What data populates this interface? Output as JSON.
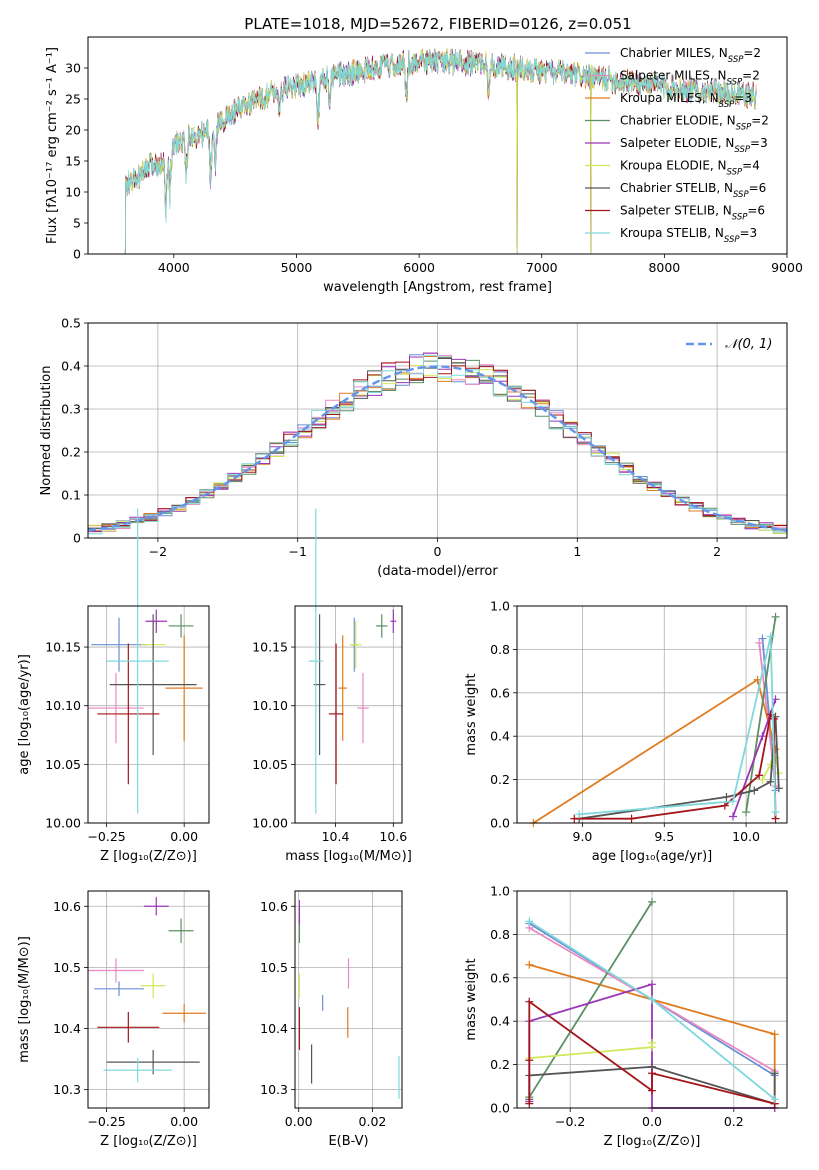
{
  "figure": {
    "title": "PLATE=1018, MJD=52672, FIBERID=0126, z=0.051"
  },
  "colors": {
    "chabrier_miles": "#6b8fd6",
    "salpeter_miles": "#e88ac2",
    "kroupa_miles": "#e07b1f",
    "chabrier_elodie": "#5c8f63",
    "salpeter_elodie": "#9b35b8",
    "kroupa_elodie": "#cfe85a",
    "chabrier_stelib": "#555555",
    "salpeter_stelib": "#a3151a",
    "kroupa_stelib": "#7fd8dc",
    "normal": "#6495ed",
    "grid": "#b0b0b0"
  },
  "models": [
    {
      "key": "chabrier_miles",
      "label": "Chabrier MILES, N",
      "nssp": "=2"
    },
    {
      "key": "salpeter_miles",
      "label": "Salpeter MILES, N",
      "nssp": "=2"
    },
    {
      "key": "kroupa_miles",
      "label": "Kroupa MILES, N",
      "nssp": "=3"
    },
    {
      "key": "chabrier_elodie",
      "label": "Chabrier ELODIE, N",
      "nssp": "=2"
    },
    {
      "key": "salpeter_elodie",
      "label": "Salpeter ELODIE, N",
      "nssp": "=3"
    },
    {
      "key": "kroupa_elodie",
      "label": "Kroupa ELODIE, N",
      "nssp": "=4"
    },
    {
      "key": "chabrier_stelib",
      "label": "Chabrier STELIB, N",
      "nssp": "=6"
    },
    {
      "key": "salpeter_stelib",
      "label": "Salpeter STELIB, N",
      "nssp": "=6"
    },
    {
      "key": "kroupa_stelib",
      "label": "Kroupa STELIB, N",
      "nssp": "=3"
    }
  ],
  "ssp_subscript": "SSP",
  "chart_data": [
    {
      "id": "spectrum",
      "type": "line",
      "title": "PLATE=1018, MJD=52672, FIBERID=0126, z=0.051",
      "xlabel": "wavelength [Angstrom, rest frame]",
      "ylabel": "Flux [fλ10⁻¹⁷ erg cm⁻² s⁻¹ A⁻¹]",
      "xlim": [
        3300,
        9000
      ],
      "ylim": [
        0,
        35
      ],
      "xticks": [
        4000,
        5000,
        6000,
        7000,
        8000,
        9000
      ],
      "yticks": [
        0,
        5,
        10,
        15,
        20,
        25,
        30
      ],
      "grid": false,
      "legend": "top-right",
      "spectrum_range": [
        3600,
        8750
      ],
      "continuum_x": [
        3600,
        3700,
        3800,
        3900,
        4000,
        4100,
        4200,
        4300,
        4500,
        4800,
        5000,
        5200,
        5500,
        5800,
        6000,
        6300,
        6600,
        7000,
        7400,
        7800,
        8200,
        8750
      ],
      "continuum_y": [
        11,
        12,
        14,
        15,
        17.5,
        18.5,
        19,
        20,
        23,
        26,
        27,
        28,
        29.5,
        30.5,
        31,
        31,
        30.5,
        29.5,
        28.5,
        27.5,
        26.5,
        25.5
      ],
      "absorption_features": [
        {
          "x": 3934,
          "depth": 9
        },
        {
          "x": 3968,
          "depth": 6
        },
        {
          "x": 4102,
          "depth": 5
        },
        {
          "x": 4300,
          "depth": 8
        },
        {
          "x": 4340,
          "depth": 5
        },
        {
          "x": 4861,
          "depth": 4
        },
        {
          "x": 5175,
          "depth": 7
        },
        {
          "x": 5270,
          "depth": 4
        },
        {
          "x": 5895,
          "depth": 6
        },
        {
          "x": 6563,
          "depth": 5
        },
        {
          "x": 6800,
          "depth": 30
        },
        {
          "x": 7400,
          "depth": 30
        }
      ]
    },
    {
      "id": "residuals",
      "type": "histogram",
      "xlabel": "(data-model)/error",
      "ylabel": "Normed distribution",
      "xlim": [
        -2.5,
        2.5
      ],
      "ylim": [
        0,
        0.5
      ],
      "xticks": [
        -2,
        -1,
        0,
        1,
        2
      ],
      "yticks": [
        0,
        0.1,
        0.2,
        0.3,
        0.4,
        0.5
      ],
      "xticklabels": [
        "−2",
        "−1",
        "0",
        "1",
        "2"
      ],
      "grid": true,
      "legend": "top-right",
      "normal_label": "𝒩(0, 1)",
      "bin_width": 0.1,
      "bin_start": -2.5
    },
    {
      "id": "age_vs_z",
      "type": "scatter",
      "xlabel": "Z [log₁₀(Z/Z⊙)]",
      "ylabel": "age  [log₁₀(age/yr)]",
      "xlim": [
        -0.31,
        0.08
      ],
      "ylim": [
        10.0,
        10.185
      ],
      "xticks": [
        -0.25,
        0.0
      ],
      "xticklabels": [
        "−0.25",
        "0.00"
      ],
      "yticks": [
        10.0,
        10.05,
        10.1,
        10.15
      ],
      "yticklabels": [
        "10.00",
        "10.05",
        "10.10",
        "10.15"
      ],
      "grid": true,
      "points": [
        {
          "model": "chabrier_miles",
          "x": -0.21,
          "xerr": 0.09,
          "y": 10.152,
          "yerr": 0.023
        },
        {
          "model": "salpeter_miles",
          "x": -0.22,
          "xerr": 0.09,
          "y": 10.098,
          "yerr": 0.03
        },
        {
          "model": "kroupa_miles",
          "x": 0.0,
          "xerr": 0.06,
          "y": 10.115,
          "yerr": 0.045
        },
        {
          "model": "chabrier_elodie",
          "x": -0.01,
          "xerr": 0.04,
          "y": 10.168,
          "yerr": 0.01
        },
        {
          "model": "salpeter_elodie",
          "x": -0.09,
          "xerr": 0.035,
          "y": 10.172,
          "yerr": 0.01
        },
        {
          "model": "kroupa_elodie",
          "x": -0.1,
          "xerr": 0.04,
          "y": 10.152,
          "yerr": 0.02
        },
        {
          "model": "chabrier_stelib",
          "x": -0.1,
          "xerr": 0.14,
          "y": 10.118,
          "yerr": 0.06
        },
        {
          "model": "salpeter_stelib",
          "x": -0.18,
          "xerr": 0.1,
          "y": 10.093,
          "yerr": 0.06
        },
        {
          "model": "kroupa_stelib",
          "x": -0.15,
          "xerr": 0.1,
          "y": 10.138,
          "yerr": 0.13
        }
      ]
    },
    {
      "id": "age_vs_mass",
      "type": "scatter",
      "xlabel": "mass [log₁₀(M/M⊙)]",
      "xlim": [
        10.26,
        10.63
      ],
      "ylim": [
        10.0,
        10.185
      ],
      "xticks": [
        10.4,
        10.6
      ],
      "xticklabels": [
        "10.4",
        "10.6"
      ],
      "yticks": [
        10.0,
        10.05,
        10.1,
        10.15
      ],
      "yticklabels": [
        "10.00",
        "10.05",
        "10.10",
        "10.15"
      ],
      "grid": true,
      "points": [
        {
          "model": "chabrier_miles",
          "x": 10.465,
          "xerr": 0.01,
          "y": 10.152,
          "yerr": 0.023
        },
        {
          "model": "salpeter_miles",
          "x": 10.495,
          "xerr": 0.02,
          "y": 10.098,
          "yerr": 0.03
        },
        {
          "model": "kroupa_miles",
          "x": 10.425,
          "xerr": 0.015,
          "y": 10.115,
          "yerr": 0.045
        },
        {
          "model": "chabrier_elodie",
          "x": 10.56,
          "xerr": 0.02,
          "y": 10.168,
          "yerr": 0.01
        },
        {
          "model": "salpeter_elodie",
          "x": 10.6,
          "xerr": 0.01,
          "y": 10.172,
          "yerr": 0.01
        },
        {
          "model": "kroupa_elodie",
          "x": 10.47,
          "xerr": 0.02,
          "y": 10.152,
          "yerr": 0.02
        },
        {
          "model": "chabrier_stelib",
          "x": 10.345,
          "xerr": 0.02,
          "y": 10.118,
          "yerr": 0.06
        },
        {
          "model": "salpeter_stelib",
          "x": 10.402,
          "xerr": 0.025,
          "y": 10.093,
          "yerr": 0.06
        },
        {
          "model": "kroupa_stelib",
          "x": 10.332,
          "xerr": 0.025,
          "y": 10.138,
          "yerr": 0.13
        }
      ]
    },
    {
      "id": "weight_vs_age",
      "type": "line",
      "xlabel": "age  [log₁₀(age/yr)]",
      "ylabel": "mass weight",
      "xlim": [
        8.6,
        10.25
      ],
      "ylim": [
        0,
        1.0
      ],
      "xticks": [
        9.0,
        9.5,
        10.0
      ],
      "xticklabels": [
        "9.0",
        "9.5",
        "10.0"
      ],
      "yticks": [
        0,
        0.2,
        0.4,
        0.6,
        0.8,
        1.0
      ],
      "yticklabels": [
        "0.0",
        "0.2",
        "0.4",
        "0.6",
        "0.8",
        "1.0"
      ],
      "grid": true,
      "series": [
        {
          "model": "chabrier_miles",
          "x": [
            10.1,
            10.18
          ],
          "y": [
            0.85,
            0.15
          ]
        },
        {
          "model": "salpeter_miles",
          "x": [
            10.08,
            10.18
          ],
          "y": [
            0.83,
            0.17
          ]
        },
        {
          "model": "kroupa_miles",
          "x": [
            8.7,
            10.07,
            10.18
          ],
          "y": [
            0.0,
            0.66,
            0.34
          ]
        },
        {
          "model": "chabrier_elodie",
          "x": [
            10.0,
            10.18
          ],
          "y": [
            0.05,
            0.95
          ]
        },
        {
          "model": "salpeter_elodie",
          "x": [
            9.92,
            10.1,
            10.18
          ],
          "y": [
            0.03,
            0.4,
            0.57
          ]
        },
        {
          "model": "kroupa_elodie",
          "x": [
            10.1,
            10.15,
            10.18,
            10.2
          ],
          "y": [
            0.2,
            0.27,
            0.3,
            0.23
          ]
        },
        {
          "model": "chabrier_stelib",
          "x": [
            8.98,
            9.88,
            10.05,
            10.15,
            10.18,
            10.2
          ],
          "y": [
            0.02,
            0.12,
            0.15,
            0.19,
            0.49,
            0.16
          ]
        },
        {
          "model": "salpeter_stelib",
          "x": [
            8.95,
            9.3,
            9.87,
            10.08,
            10.15,
            10.17,
            10.18
          ],
          "y": [
            0.02,
            0.02,
            0.08,
            0.22,
            0.5,
            0.48,
            0.02
          ]
        },
        {
          "model": "kroupa_stelib",
          "x": [
            8.98,
            9.92,
            10.15,
            10.18
          ],
          "y": [
            0.04,
            0.1,
            0.86,
            0.05
          ]
        }
      ]
    },
    {
      "id": "mass_vs_z",
      "type": "scatter",
      "xlabel": "Z [log₁₀(Z/Z⊙)]",
      "ylabel": "mass [log₁₀(M/M⊙)]",
      "xlim": [
        -0.31,
        0.08
      ],
      "ylim": [
        10.27,
        10.625
      ],
      "xticks": [
        -0.25,
        0.0
      ],
      "xticklabels": [
        "−0.25",
        "0.00"
      ],
      "yticks": [
        10.3,
        10.4,
        10.5,
        10.6
      ],
      "yticklabels": [
        "10.3",
        "10.4",
        "10.5",
        "10.6"
      ],
      "grid": true,
      "points": [
        {
          "model": "chabrier_miles",
          "x": -0.21,
          "xerr": 0.08,
          "y": 10.465,
          "yerr": 0.012
        },
        {
          "model": "salpeter_miles",
          "x": -0.22,
          "xerr": 0.09,
          "y": 10.495,
          "yerr": 0.02
        },
        {
          "model": "kroupa_miles",
          "x": 0.0,
          "xerr": 0.07,
          "y": 10.425,
          "yerr": 0.015
        },
        {
          "model": "chabrier_elodie",
          "x": -0.01,
          "xerr": 0.04,
          "y": 10.56,
          "yerr": 0.02
        },
        {
          "model": "salpeter_elodie",
          "x": -0.09,
          "xerr": 0.04,
          "y": 10.6,
          "yerr": 0.015
        },
        {
          "model": "kroupa_elodie",
          "x": -0.1,
          "xerr": 0.04,
          "y": 10.47,
          "yerr": 0.02
        },
        {
          "model": "chabrier_stelib",
          "x": -0.1,
          "xerr": 0.15,
          "y": 10.345,
          "yerr": 0.02
        },
        {
          "model": "salpeter_stelib",
          "x": -0.18,
          "xerr": 0.1,
          "y": 10.402,
          "yerr": 0.025
        },
        {
          "model": "kroupa_stelib",
          "x": -0.15,
          "xerr": 0.11,
          "y": 10.332,
          "yerr": 0.02
        }
      ]
    },
    {
      "id": "mass_vs_ebv",
      "type": "scatter",
      "xlabel": "E(B-V)",
      "xlim": [
        -0.001,
        0.028
      ],
      "ylim": [
        10.27,
        10.625
      ],
      "xticks": [
        0.0,
        0.02
      ],
      "xticklabels": [
        "0.00",
        "0.02"
      ],
      "yticks": [
        10.3,
        10.4,
        10.5,
        10.6
      ],
      "yticklabels": [
        "10.3",
        "10.4",
        "10.5",
        "10.6"
      ],
      "grid": true,
      "points": [
        {
          "model": "chabrier_miles",
          "x": 0.0065,
          "xerr": 0.0,
          "y": 10.442,
          "yerr": 0.013
        },
        {
          "model": "salpeter_miles",
          "x": 0.0135,
          "xerr": 0.0,
          "y": 10.49,
          "yerr": 0.025
        },
        {
          "model": "kroupa_miles",
          "x": 0.0133,
          "xerr": 0.0,
          "y": 10.41,
          "yerr": 0.025
        },
        {
          "model": "chabrier_elodie",
          "x": 0.0002,
          "xerr": 0.0,
          "y": 10.56,
          "yerr": 0.02
        },
        {
          "model": "salpeter_elodie",
          "x": 0.0002,
          "xerr": 0.0,
          "y": 10.59,
          "yerr": 0.02
        },
        {
          "model": "kroupa_elodie",
          "x": 0.0002,
          "xerr": 0.0,
          "y": 10.47,
          "yerr": 0.02
        },
        {
          "model": "chabrier_stelib",
          "x": 0.0035,
          "xerr": 0.0,
          "y": 10.342,
          "yerr": 0.032
        },
        {
          "model": "salpeter_stelib",
          "x": 0.0002,
          "xerr": 0.0,
          "y": 10.4,
          "yerr": 0.035
        },
        {
          "model": "kroupa_stelib",
          "x": 0.0272,
          "xerr": 0.0,
          "y": 10.32,
          "yerr": 0.035
        }
      ]
    },
    {
      "id": "weight_vs_z",
      "type": "line",
      "xlabel": "Z [log₁₀(Z/Z⊙)]",
      "ylabel": "mass weight",
      "xlim": [
        -0.33,
        0.33
      ],
      "ylim": [
        0,
        1.0
      ],
      "xticks": [
        -0.2,
        0.0,
        0.2
      ],
      "xticklabels": [
        "−0.2",
        "0.0",
        "0.2"
      ],
      "yticks": [
        0,
        0.2,
        0.4,
        0.6,
        0.8,
        1.0
      ],
      "yticklabels": [
        "0.0",
        "0.2",
        "0.4",
        "0.6",
        "0.8",
        "1.0"
      ],
      "grid": true,
      "series": [
        {
          "model": "chabrier_miles",
          "x": [
            -0.3,
            0.3
          ],
          "y": [
            0.85,
            0.15
          ]
        },
        {
          "model": "salpeter_miles",
          "x": [
            -0.3,
            0.3
          ],
          "y": [
            0.83,
            0.17
          ]
        },
        {
          "model": "kroupa_miles",
          "x": [
            -0.3,
            0.3,
            0.3
          ],
          "y": [
            0.66,
            0.34,
            0.0
          ]
        },
        {
          "model": "chabrier_elodie",
          "x": [
            -0.3,
            0.0
          ],
          "y": [
            0.05,
            0.95
          ]
        },
        {
          "model": "salpeter_elodie",
          "x": [
            -0.3,
            -0.3,
            0.0,
            0.0,
            0.3
          ],
          "y": [
            0.03,
            0.4,
            0.57,
            0.0,
            0.0
          ]
        },
        {
          "model": "kroupa_elodie",
          "x": [
            -0.3,
            0.0,
            0.0
          ],
          "y": [
            0.23,
            0.28,
            0.3
          ]
        },
        {
          "model": "chabrier_stelib",
          "x": [
            -0.3,
            -0.3,
            0.0,
            0.3,
            0.3
          ],
          "y": [
            0.04,
            0.15,
            0.19,
            0.02,
            0.16
          ]
        },
        {
          "model": "salpeter_stelib",
          "x": [
            -0.3,
            -0.3,
            -0.3,
            0.0,
            0.0,
            0.3
          ],
          "y": [
            0.02,
            0.22,
            0.49,
            0.08,
            0.16,
            0.02
          ]
        },
        {
          "model": "kroupa_stelib",
          "x": [
            -0.3,
            0.0,
            0.3
          ],
          "y": [
            0.86,
            0.5,
            0.04
          ]
        }
      ]
    }
  ]
}
